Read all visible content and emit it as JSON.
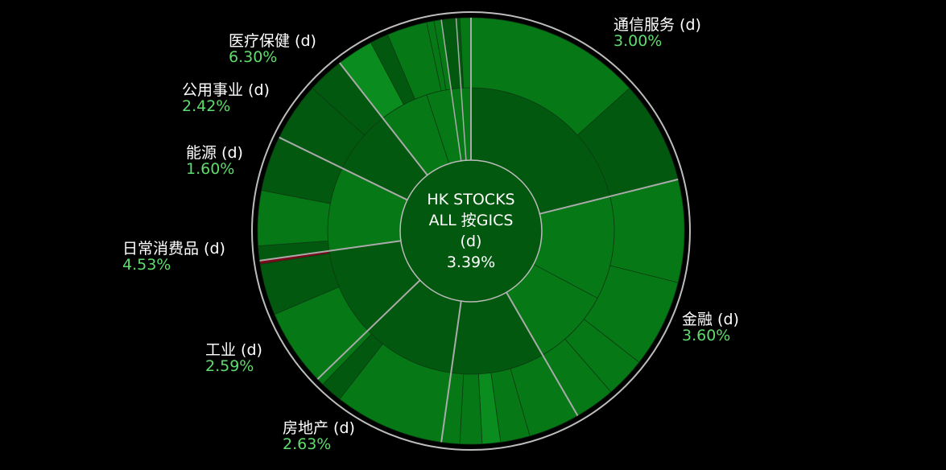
{
  "chart_data": {
    "type": "sunburst",
    "center": {
      "lines": [
        "HK STOCKS",
        "ALL 按GICS",
        "(d)"
      ],
      "value": "3.39%"
    },
    "sectors": [
      {
        "name": "通信服务 (d)",
        "value": "3.00%"
      },
      {
        "name": "金融 (d)",
        "value": "3.60%"
      },
      {
        "name": "房地产 (d)",
        "value": "2.63%"
      },
      {
        "name": "工业 (d)",
        "value": "2.59%"
      },
      {
        "name": "日常消费品 (d)",
        "value": "4.53%"
      },
      {
        "name": "能源 (d)",
        "value": "1.60%"
      },
      {
        "name": "公用事业 (d)",
        "value": "2.42%"
      },
      {
        "name": "医疗保健 (d)",
        "value": "6.30%"
      }
    ],
    "colors": {
      "background": "#000000",
      "dark_green": "#03580f",
      "mid_green": "#067816",
      "bright_green": "#0a8c1e",
      "negative": "#7a0a1a",
      "separator": "#aaaaaa",
      "label_value": "#5fdc6e"
    }
  }
}
